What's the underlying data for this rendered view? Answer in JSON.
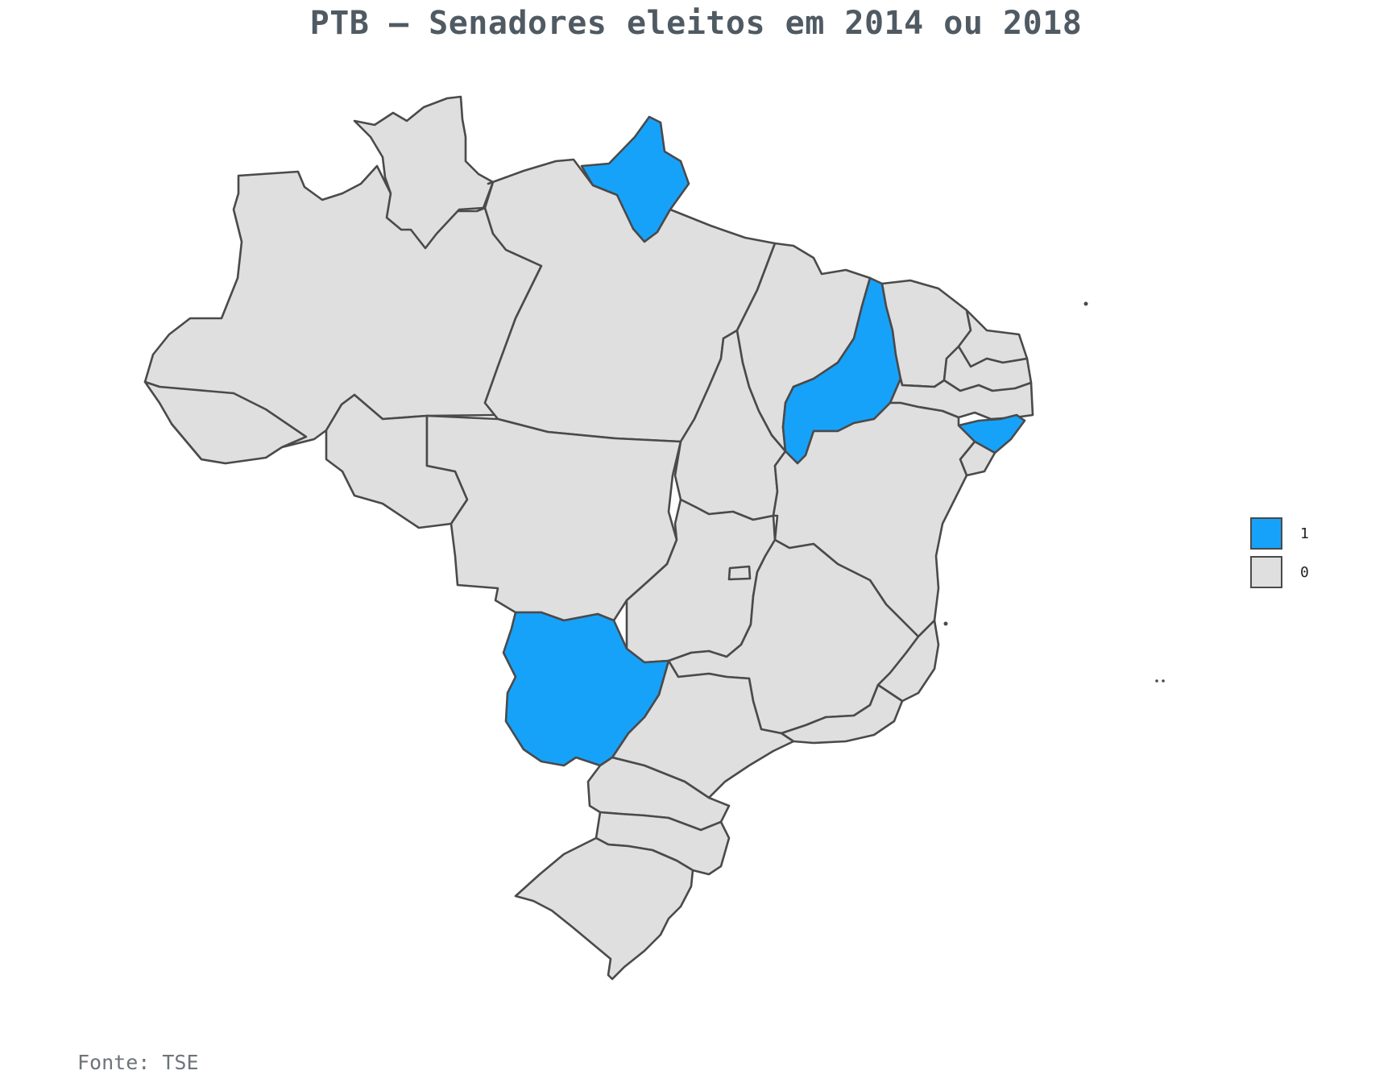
{
  "title": "PTB – Senadores eleitos em 2014 ou 2018",
  "source": "Fonte: TSE",
  "colors": {
    "one": "#17a2fa",
    "zero": "#dfdfdf",
    "border": "#4a4a4a"
  },
  "legend": [
    {
      "label": "1",
      "color": "#17a2fa"
    },
    {
      "label": "0",
      "color": "#dfdfdf"
    }
  ],
  "chart_data": {
    "type": "choropleth",
    "title": "PTB – Senadores eleitos em 2014 ou 2018",
    "source": "Fonte: TSE",
    "states": [
      {
        "name": "Amazonas",
        "value": 0
      },
      {
        "name": "Roraima",
        "value": 0
      },
      {
        "name": "Amapá",
        "value": 1
      },
      {
        "name": "Pará",
        "value": 0
      },
      {
        "name": "Acre",
        "value": 0
      },
      {
        "name": "Rondônia",
        "value": 0
      },
      {
        "name": "Mato Grosso",
        "value": 0
      },
      {
        "name": "Tocantins",
        "value": 0
      },
      {
        "name": "Maranhão",
        "value": 0
      },
      {
        "name": "Piauí",
        "value": 1
      },
      {
        "name": "Ceará",
        "value": 0
      },
      {
        "name": "Rio Grande do Norte",
        "value": 0
      },
      {
        "name": "Paraíba",
        "value": 0
      },
      {
        "name": "Pernambuco",
        "value": 0
      },
      {
        "name": "Alagoas",
        "value": 1
      },
      {
        "name": "Sergipe",
        "value": 0
      },
      {
        "name": "Bahia",
        "value": 0
      },
      {
        "name": "Goiás",
        "value": 0
      },
      {
        "name": "Distrito Federal",
        "value": 0
      },
      {
        "name": "Minas Gerais",
        "value": 0
      },
      {
        "name": "Espírito Santo",
        "value": 0
      },
      {
        "name": "Rio de Janeiro",
        "value": 0
      },
      {
        "name": "São Paulo",
        "value": 0
      },
      {
        "name": "Mato Grosso do Sul",
        "value": 1
      },
      {
        "name": "Paraná",
        "value": 0
      },
      {
        "name": "Santa Catarina",
        "value": 0
      },
      {
        "name": "Rio Grande do Sul",
        "value": 0
      }
    ]
  }
}
